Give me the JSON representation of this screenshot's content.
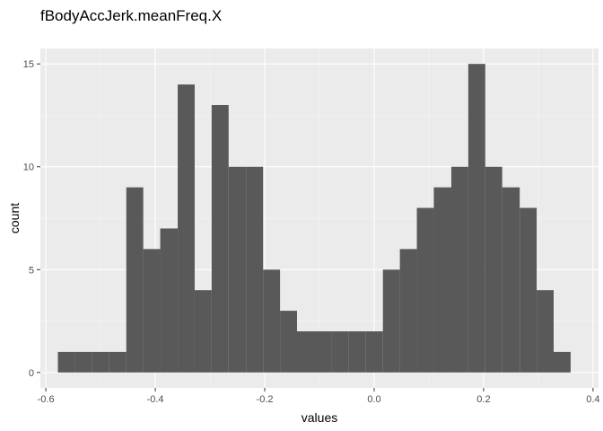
{
  "chart_data": {
    "type": "bar",
    "title": "fBodyAccJerk.meanFreq.X",
    "xlabel": "values",
    "ylabel": "count",
    "xlim": [
      -0.61,
      0.41
    ],
    "ylim": [
      -0.75,
      15.75
    ],
    "x_ticks": [
      -0.6,
      -0.4,
      -0.2,
      0.0,
      0.2,
      0.4
    ],
    "x_tick_labels": [
      "-0.6",
      "-0.4",
      "-0.2",
      "0.0",
      "0.2",
      "0.4"
    ],
    "y_ticks": [
      0,
      5,
      10,
      15
    ],
    "y_tick_labels": [
      "0",
      "5",
      "10",
      "15"
    ],
    "grid": true,
    "bins": [
      {
        "x0": -0.578,
        "x1": -0.547,
        "count": 1
      },
      {
        "x0": -0.547,
        "x1": -0.516,
        "count": 1
      },
      {
        "x0": -0.516,
        "x1": -0.484,
        "count": 1
      },
      {
        "x0": -0.484,
        "x1": -0.453,
        "count": 1
      },
      {
        "x0": -0.453,
        "x1": -0.422,
        "count": 9
      },
      {
        "x0": -0.422,
        "x1": -0.391,
        "count": 6
      },
      {
        "x0": -0.391,
        "x1": -0.359,
        "count": 7
      },
      {
        "x0": -0.359,
        "x1": -0.328,
        "count": 14
      },
      {
        "x0": -0.328,
        "x1": -0.297,
        "count": 4
      },
      {
        "x0": -0.297,
        "x1": -0.266,
        "count": 13
      },
      {
        "x0": -0.266,
        "x1": -0.234,
        "count": 10
      },
      {
        "x0": -0.234,
        "x1": -0.203,
        "count": 10
      },
      {
        "x0": -0.203,
        "x1": -0.172,
        "count": 5
      },
      {
        "x0": -0.172,
        "x1": -0.141,
        "count": 3
      },
      {
        "x0": -0.141,
        "x1": -0.109,
        "count": 2
      },
      {
        "x0": -0.109,
        "x1": -0.078,
        "count": 2
      },
      {
        "x0": -0.078,
        "x1": -0.047,
        "count": 2
      },
      {
        "x0": -0.047,
        "x1": -0.016,
        "count": 2
      },
      {
        "x0": -0.016,
        "x1": 0.016,
        "count": 2
      },
      {
        "x0": 0.016,
        "x1": 0.047,
        "count": 5
      },
      {
        "x0": 0.047,
        "x1": 0.078,
        "count": 6
      },
      {
        "x0": 0.078,
        "x1": 0.109,
        "count": 8
      },
      {
        "x0": 0.109,
        "x1": 0.141,
        "count": 9
      },
      {
        "x0": 0.141,
        "x1": 0.172,
        "count": 10
      },
      {
        "x0": 0.172,
        "x1": 0.203,
        "count": 15
      },
      {
        "x0": 0.203,
        "x1": 0.234,
        "count": 10
      },
      {
        "x0": 0.234,
        "x1": 0.266,
        "count": 9
      },
      {
        "x0": 0.266,
        "x1": 0.297,
        "count": 8
      },
      {
        "x0": 0.297,
        "x1": 0.328,
        "count": 4
      },
      {
        "x0": 0.328,
        "x1": 0.359,
        "count": 1
      }
    ],
    "colors": {
      "bar": "#595959",
      "panel": "#ebebeb",
      "grid_major": "#ffffff",
      "grid_minor": "#f5f5f5",
      "tick": "#333333"
    }
  }
}
